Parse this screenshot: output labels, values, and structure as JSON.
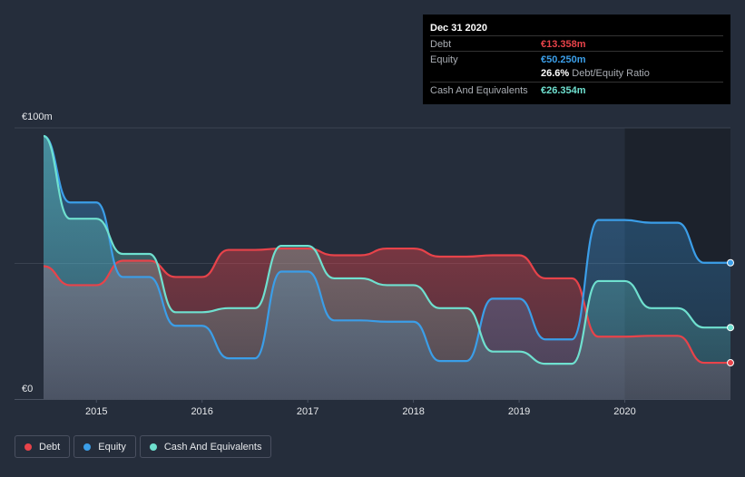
{
  "tooltip": {
    "date": "Dec 31 2020",
    "debt_label": "Debt",
    "debt_value": "€13.358m",
    "equity_label": "Equity",
    "equity_value": "€50.250m",
    "ratio_value": "26.6%",
    "ratio_label": "Debt/Equity Ratio",
    "cash_label": "Cash And Equivalents",
    "cash_value": "€26.354m"
  },
  "legend": {
    "debt": "Debt",
    "equity": "Equity",
    "cash": "Cash And Equivalents"
  },
  "colors": {
    "debt": "#e8434a",
    "equity": "#3b9ee8",
    "cash": "#6fe0cf",
    "background": "#252d3b",
    "plot_right": "#1c222c"
  },
  "chart_data": {
    "type": "area",
    "title": "",
    "xlabel": "",
    "ylabel": "",
    "ylim": [
      0,
      100
    ],
    "xlim": [
      2014.5,
      2021.0
    ],
    "y_tick_labels": [
      {
        "value": 100,
        "label": "€100m"
      },
      {
        "value": 0,
        "label": "€0"
      }
    ],
    "x_ticks": [
      {
        "value": 2015,
        "label": "2015"
      },
      {
        "value": 2016,
        "label": "2016"
      },
      {
        "value": 2017,
        "label": "2017"
      },
      {
        "value": 2018,
        "label": "2018"
      },
      {
        "value": 2019,
        "label": "2019"
      },
      {
        "value": 2020,
        "label": "2020"
      }
    ],
    "series": [
      {
        "name": "Debt",
        "key": "debt",
        "points": [
          [
            2014.5,
            49
          ],
          [
            2014.75,
            42
          ],
          [
            2015.0,
            42
          ],
          [
            2015.25,
            51
          ],
          [
            2015.5,
            51
          ],
          [
            2015.75,
            45
          ],
          [
            2016.0,
            45
          ],
          [
            2016.25,
            55
          ],
          [
            2016.5,
            55
          ],
          [
            2016.75,
            55.5
          ],
          [
            2017.0,
            55.5
          ],
          [
            2017.25,
            53
          ],
          [
            2017.5,
            53
          ],
          [
            2017.75,
            55.5
          ],
          [
            2018.0,
            55.5
          ],
          [
            2018.25,
            52.5
          ],
          [
            2018.5,
            52.5
          ],
          [
            2018.75,
            53
          ],
          [
            2019.0,
            53
          ],
          [
            2019.25,
            44.5
          ],
          [
            2019.5,
            44.5
          ],
          [
            2019.75,
            23
          ],
          [
            2020.0,
            23
          ],
          [
            2020.25,
            23.3
          ],
          [
            2020.5,
            23.3
          ],
          [
            2020.75,
            13.358
          ],
          [
            2021.0,
            13.358
          ]
        ]
      },
      {
        "name": "Equity",
        "key": "equity",
        "points": [
          [
            2014.5,
            97
          ],
          [
            2014.75,
            72.5
          ],
          [
            2015.0,
            72.5
          ],
          [
            2015.25,
            45
          ],
          [
            2015.5,
            45
          ],
          [
            2015.75,
            27
          ],
          [
            2016.0,
            27
          ],
          [
            2016.25,
            15
          ],
          [
            2016.5,
            15
          ],
          [
            2016.75,
            47
          ],
          [
            2017.0,
            47
          ],
          [
            2017.25,
            29
          ],
          [
            2017.5,
            29
          ],
          [
            2017.75,
            28.5
          ],
          [
            2018.0,
            28.5
          ],
          [
            2018.25,
            14
          ],
          [
            2018.5,
            14
          ],
          [
            2018.75,
            37
          ],
          [
            2019.0,
            37
          ],
          [
            2019.25,
            22
          ],
          [
            2019.5,
            22
          ],
          [
            2019.75,
            66
          ],
          [
            2020.0,
            66
          ],
          [
            2020.25,
            65
          ],
          [
            2020.5,
            65
          ],
          [
            2020.75,
            50.25
          ],
          [
            2021.0,
            50.25
          ]
        ]
      },
      {
        "name": "Cash And Equivalents",
        "key": "cash",
        "points": [
          [
            2014.5,
            97
          ],
          [
            2014.75,
            66.5
          ],
          [
            2015.0,
            66.5
          ],
          [
            2015.25,
            53.5
          ],
          [
            2015.5,
            53.5
          ],
          [
            2015.75,
            32
          ],
          [
            2016.0,
            32
          ],
          [
            2016.25,
            33.5
          ],
          [
            2016.5,
            33.5
          ],
          [
            2016.75,
            56.5
          ],
          [
            2017.0,
            56.5
          ],
          [
            2017.25,
            44.5
          ],
          [
            2017.5,
            44.5
          ],
          [
            2017.75,
            42
          ],
          [
            2018.0,
            42
          ],
          [
            2018.25,
            33.5
          ],
          [
            2018.5,
            33.5
          ],
          [
            2018.75,
            17.5
          ],
          [
            2019.0,
            17.5
          ],
          [
            2019.25,
            13
          ],
          [
            2019.5,
            13
          ],
          [
            2019.75,
            43.5
          ],
          [
            2020.0,
            43.5
          ],
          [
            2020.25,
            33.5
          ],
          [
            2020.5,
            33.5
          ],
          [
            2020.75,
            26.354
          ],
          [
            2021.0,
            26.354
          ]
        ]
      }
    ]
  }
}
